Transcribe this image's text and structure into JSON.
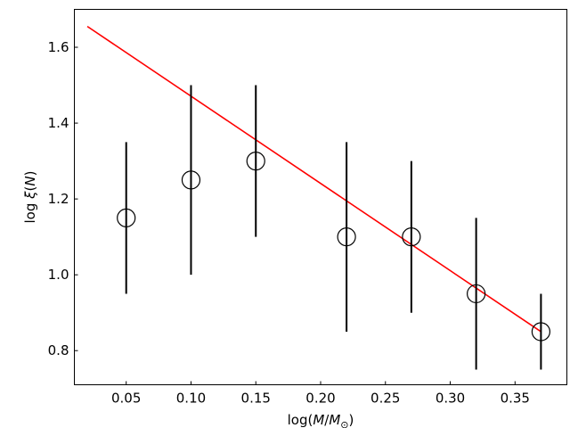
{
  "chart_data": {
    "type": "scatter",
    "xlabel_parts": {
      "prefix": "log(",
      "m": "M",
      "slash": "/",
      "msun": "M",
      "sub": "⊙",
      "suffix": ")"
    },
    "ylabel_parts": {
      "prefix": "log ",
      "xi": "ξ",
      "open": "(",
      "n": "N",
      "close": ")"
    },
    "xlim": [
      0.01,
      0.39
    ],
    "ylim": [
      0.71,
      1.7
    ],
    "xticks": [
      0.05,
      0.1,
      0.15,
      0.2,
      0.25,
      0.3,
      0.35
    ],
    "xtick_labels": [
      "0.05",
      "0.10",
      "0.15",
      "0.20",
      "0.25",
      "0.30",
      "0.35"
    ],
    "yticks": [
      0.8,
      1.0,
      1.2,
      1.4,
      1.6
    ],
    "ytick_labels": [
      "0.8",
      "1.0",
      "1.2",
      "1.4",
      "1.6"
    ],
    "grid": false,
    "series": [
      {
        "marker": "open-circle",
        "color": "#000000",
        "x": [
          0.05,
          0.1,
          0.15,
          0.22,
          0.27,
          0.32,
          0.37
        ],
        "y": [
          1.15,
          1.25,
          1.3,
          1.1,
          1.1,
          0.95,
          0.85
        ],
        "yerr": [
          0.2,
          0.25,
          0.2,
          0.25,
          0.2,
          0.2,
          0.1
        ]
      }
    ],
    "fit_line": {
      "color": "#ff0000",
      "x": [
        0.02,
        0.37
      ],
      "y": [
        1.655,
        0.85
      ]
    }
  }
}
